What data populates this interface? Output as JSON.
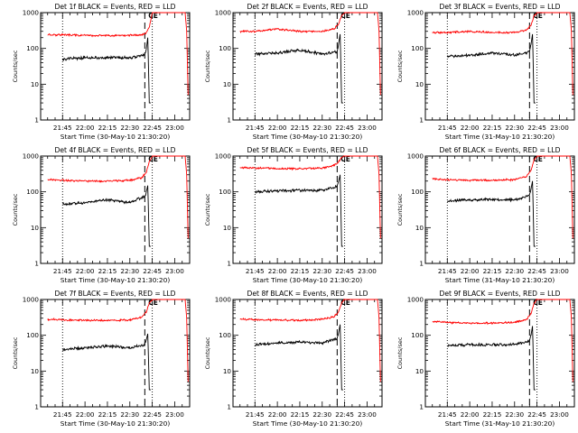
{
  "figure": {
    "y_tick_labels": [
      "1",
      "10",
      "100",
      "1000"
    ],
    "x_tick_labels": [
      "21:45",
      "22:00",
      "22:15",
      "22:30",
      "22:45",
      "23:00"
    ],
    "ylim": [
      1,
      1000
    ],
    "y_scale": "log",
    "colors": {
      "events": "#000000",
      "lld": "#ff0000",
      "marker": "#000000"
    },
    "marker_glyph": "CE"
  },
  "chart_data": [
    {
      "type": "line",
      "title": "Det 1f BLACK = Events, RED = LLD",
      "xlabel": "Start Time (30-May-10 21:30:20)",
      "ylabel": "Counts/sec",
      "x_ticks": [
        "21:45",
        "22:00",
        "22:15",
        "22:30",
        "22:45",
        "23:00"
      ],
      "ylim": [
        1,
        1000
      ],
      "y_scale": "log",
      "x_markers": [
        "21:45",
        "22:40",
        "22:45"
      ],
      "series": [
        {
          "name": "Events",
          "color": "#000000",
          "x": [
            "21:45",
            "22:00",
            "22:15",
            "22:30",
            "22:40",
            "22:41",
            "22:42",
            "22:43",
            "22:44"
          ],
          "values": [
            50,
            55,
            55,
            55,
            65,
            95,
            200,
            3,
            3
          ]
        },
        {
          "name": "LLD",
          "color": "#ff0000",
          "x": [
            "21:35",
            "21:45",
            "22:00",
            "22:15",
            "22:30",
            "22:38",
            "22:41",
            "22:43",
            "22:45",
            "23:07",
            "23:08",
            "23:09"
          ],
          "values": [
            240,
            240,
            230,
            230,
            230,
            240,
            270,
            400,
            1000,
            1000,
            300,
            5
          ]
        }
      ]
    },
    {
      "type": "line",
      "title": "Det 2f BLACK = Events, RED = LLD",
      "xlabel": "Start Time (30-May-10 21:30:20)",
      "ylabel": "Counts/sec",
      "x_ticks": [
        "21:45",
        "22:00",
        "22:15",
        "22:30",
        "22:45",
        "23:00"
      ],
      "ylim": [
        1,
        1000
      ],
      "y_scale": "log",
      "x_markers": [
        "21:45",
        "22:40",
        "22:45"
      ],
      "series": [
        {
          "name": "Events",
          "color": "#000000",
          "x": [
            "21:45",
            "22:00",
            "22:15",
            "22:30",
            "22:40",
            "22:41",
            "22:42",
            "22:43",
            "22:44"
          ],
          "values": [
            70,
            75,
            90,
            70,
            80,
            140,
            250,
            3,
            3
          ]
        },
        {
          "name": "LLD",
          "color": "#ff0000",
          "x": [
            "21:35",
            "21:45",
            "22:00",
            "22:15",
            "22:30",
            "22:38",
            "22:41",
            "22:43",
            "22:45",
            "23:07",
            "23:08",
            "23:09"
          ],
          "values": [
            300,
            300,
            350,
            300,
            300,
            350,
            500,
            800,
            1000,
            1000,
            300,
            5
          ]
        }
      ]
    },
    {
      "type": "line",
      "title": "Det 3f BLACK = Events, RED = LLD",
      "xlabel": "Start Time (31-May-10 21:30:20)",
      "ylabel": "Counts/sec",
      "x_ticks": [
        "21:45",
        "22:00",
        "22:15",
        "22:30",
        "22:45",
        "23:00"
      ],
      "ylim": [
        1,
        1000
      ],
      "y_scale": "log",
      "x_markers": [
        "21:45",
        "22:40",
        "22:45"
      ],
      "series": [
        {
          "name": "Events",
          "color": "#000000",
          "x": [
            "21:45",
            "22:00",
            "22:15",
            "22:30",
            "22:40",
            "22:41",
            "22:42",
            "22:43",
            "22:44"
          ],
          "values": [
            60,
            65,
            75,
            65,
            80,
            130,
            250,
            3,
            3
          ]
        },
        {
          "name": "LLD",
          "color": "#ff0000",
          "x": [
            "21:35",
            "21:45",
            "22:00",
            "22:15",
            "22:30",
            "22:38",
            "22:41",
            "22:43",
            "22:45",
            "23:07",
            "23:08",
            "23:09"
          ],
          "values": [
            280,
            280,
            300,
            280,
            280,
            330,
            450,
            800,
            1000,
            1000,
            300,
            5
          ]
        }
      ]
    },
    {
      "type": "line",
      "title": "Det 4f BLACK = Events, RED = LLD",
      "xlabel": "Start Time (30-May-10 21:30:20)",
      "ylabel": "Counts/sec",
      "x_ticks": [
        "21:45",
        "22:00",
        "22:15",
        "22:30",
        "22:45",
        "23:00"
      ],
      "ylim": [
        1,
        1000
      ],
      "y_scale": "log",
      "x_markers": [
        "21:45",
        "22:40",
        "22:45"
      ],
      "series": [
        {
          "name": "Events",
          "color": "#000000",
          "x": [
            "21:45",
            "22:00",
            "22:15",
            "22:30",
            "22:40",
            "22:41",
            "22:42",
            "22:43",
            "22:44"
          ],
          "values": [
            45,
            50,
            60,
            50,
            75,
            100,
            150,
            3,
            3
          ]
        },
        {
          "name": "LLD",
          "color": "#ff0000",
          "x": [
            "21:35",
            "21:45",
            "22:00",
            "22:15",
            "22:30",
            "22:38",
            "22:41",
            "22:43",
            "22:45",
            "23:07",
            "23:08",
            "23:09"
          ],
          "values": [
            220,
            210,
            200,
            200,
            210,
            250,
            350,
            700,
            1000,
            1000,
            300,
            5
          ]
        }
      ]
    },
    {
      "type": "line",
      "title": "Det 5f BLACK = Events, RED = LLD",
      "xlabel": "Start Time (30-May-10 21:30:20)",
      "ylabel": "Counts/sec",
      "x_ticks": [
        "21:45",
        "22:00",
        "22:15",
        "22:30",
        "22:45",
        "23:00"
      ],
      "ylim": [
        1,
        1000
      ],
      "y_scale": "log",
      "x_markers": [
        "21:45",
        "22:40",
        "22:45"
      ],
      "series": [
        {
          "name": "Events",
          "color": "#000000",
          "x": [
            "21:45",
            "22:00",
            "22:15",
            "22:30",
            "22:40",
            "22:41",
            "22:42",
            "22:43",
            "22:44"
          ],
          "values": [
            100,
            105,
            110,
            110,
            140,
            200,
            300,
            3,
            3
          ]
        },
        {
          "name": "LLD",
          "color": "#ff0000",
          "x": [
            "21:35",
            "21:45",
            "22:00",
            "22:15",
            "22:30",
            "22:38",
            "22:41",
            "22:43",
            "22:45",
            "23:07",
            "23:08",
            "23:09"
          ],
          "values": [
            480,
            460,
            450,
            440,
            460,
            550,
            700,
            900,
            1000,
            1000,
            300,
            5
          ]
        }
      ]
    },
    {
      "type": "line",
      "title": "Det 6f BLACK = Events, RED = LLD",
      "xlabel": "Start Time (31-May-10 21:30:20)",
      "ylabel": "Counts/sec",
      "x_ticks": [
        "21:45",
        "22:00",
        "22:15",
        "22:30",
        "22:45",
        "23:00"
      ],
      "ylim": [
        1,
        1000
      ],
      "y_scale": "log",
      "x_markers": [
        "21:45",
        "22:40",
        "22:45"
      ],
      "series": [
        {
          "name": "Events",
          "color": "#000000",
          "x": [
            "21:45",
            "22:00",
            "22:15",
            "22:30",
            "22:40",
            "22:41",
            "22:42",
            "22:43",
            "22:44"
          ],
          "values": [
            55,
            60,
            60,
            60,
            80,
            120,
            200,
            3,
            3
          ]
        },
        {
          "name": "LLD",
          "color": "#ff0000",
          "x": [
            "21:35",
            "21:45",
            "22:00",
            "22:15",
            "22:30",
            "22:38",
            "22:41",
            "22:43",
            "22:45",
            "23:07",
            "23:08",
            "23:09"
          ],
          "values": [
            230,
            220,
            210,
            210,
            220,
            270,
            400,
            800,
            1000,
            1000,
            300,
            5
          ]
        }
      ]
    },
    {
      "type": "line",
      "title": "Det 7f BLACK = Events, RED = LLD",
      "xlabel": "Start Time (30-May-10 21:30:20)",
      "ylabel": "Counts/sec",
      "x_ticks": [
        "21:45",
        "22:00",
        "22:15",
        "22:30",
        "22:45",
        "23:00"
      ],
      "ylim": [
        1,
        1000
      ],
      "y_scale": "log",
      "x_markers": [
        "21:45",
        "22:40",
        "22:45"
      ],
      "series": [
        {
          "name": "Events",
          "color": "#000000",
          "x": [
            "21:45",
            "22:00",
            "22:15",
            "22:30",
            "22:40",
            "22:41",
            "22:42",
            "22:43",
            "22:44"
          ],
          "values": [
            40,
            45,
            50,
            45,
            55,
            75,
            110,
            3,
            3
          ]
        },
        {
          "name": "LLD",
          "color": "#ff0000",
          "x": [
            "21:35",
            "21:45",
            "22:00",
            "22:15",
            "22:30",
            "22:38",
            "22:41",
            "22:43",
            "22:45",
            "23:07",
            "23:08",
            "23:09"
          ],
          "values": [
            280,
            270,
            260,
            260,
            270,
            320,
            450,
            800,
            1000,
            1000,
            300,
            5
          ]
        }
      ]
    },
    {
      "type": "line",
      "title": "Det 8f BLACK = Events, RED = LLD",
      "xlabel": "Start Time (30-May-10 21:30:20)",
      "ylabel": "Counts/sec",
      "x_ticks": [
        "21:45",
        "22:00",
        "22:15",
        "22:30",
        "22:45",
        "23:00"
      ],
      "ylim": [
        1,
        1000
      ],
      "y_scale": "log",
      "x_markers": [
        "21:45",
        "22:40",
        "22:45"
      ],
      "series": [
        {
          "name": "Events",
          "color": "#000000",
          "x": [
            "21:45",
            "22:00",
            "22:15",
            "22:30",
            "22:40",
            "22:41",
            "22:42",
            "22:43",
            "22:44"
          ],
          "values": [
            55,
            60,
            65,
            60,
            80,
            120,
            200,
            3,
            3
          ]
        },
        {
          "name": "LLD",
          "color": "#ff0000",
          "x": [
            "21:35",
            "21:45",
            "22:00",
            "22:15",
            "22:30",
            "22:38",
            "22:41",
            "22:43",
            "22:45",
            "23:07",
            "23:08",
            "23:09"
          ],
          "values": [
            280,
            270,
            270,
            260,
            280,
            330,
            450,
            800,
            1000,
            1000,
            300,
            5
          ]
        }
      ]
    },
    {
      "type": "line",
      "title": "Det 9f BLACK = Events, RED = LLD",
      "xlabel": "Start Time (31-May-10 21:30:20)",
      "ylabel": "Counts/sec",
      "x_ticks": [
        "21:45",
        "22:00",
        "22:15",
        "22:30",
        "22:45",
        "23:00"
      ],
      "ylim": [
        1,
        1000
      ],
      "y_scale": "log",
      "x_markers": [
        "21:45",
        "22:40",
        "22:45"
      ],
      "series": [
        {
          "name": "Events",
          "color": "#000000",
          "x": [
            "21:45",
            "22:00",
            "22:15",
            "22:30",
            "22:40",
            "22:41",
            "22:42",
            "22:43",
            "22:44"
          ],
          "values": [
            50,
            55,
            55,
            55,
            70,
            100,
            180,
            3,
            3
          ]
        },
        {
          "name": "LLD",
          "color": "#ff0000",
          "x": [
            "21:35",
            "21:45",
            "22:00",
            "22:15",
            "22:30",
            "22:38",
            "22:41",
            "22:43",
            "22:45",
            "23:07",
            "23:08",
            "23:09"
          ],
          "values": [
            240,
            230,
            220,
            220,
            230,
            280,
            400,
            800,
            1000,
            1000,
            300,
            5
          ]
        }
      ]
    }
  ]
}
